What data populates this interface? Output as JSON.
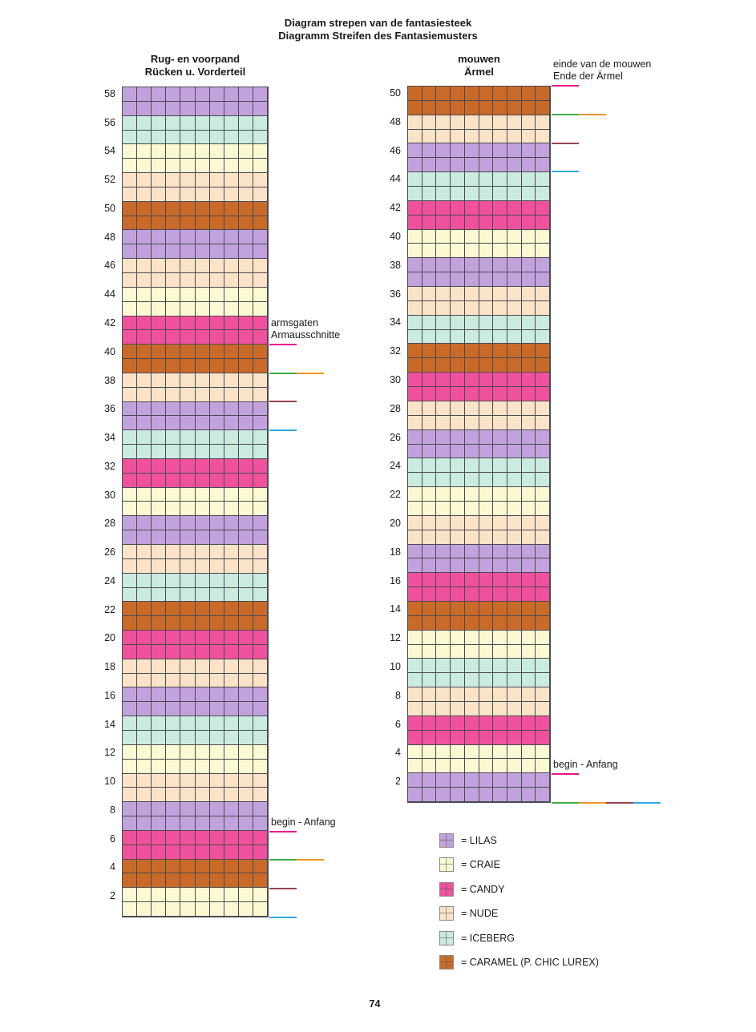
{
  "page": {
    "title_line1": "Diagram strepen van de fantasiesteek",
    "title_line2": "Diagramm Streifen des Fantasiemusters",
    "page_number": "74"
  },
  "colors": {
    "LILAS": "#c2a2dd",
    "CRAIE": "#fbf9d2",
    "CANDY": "#f1519c",
    "NUDE": "#fbe3c8",
    "ICEBERG": "#c9ecdf",
    "CARAMEL": "#ca6a28"
  },
  "marker_colors": {
    "magenta": "#ed118f",
    "green": "#3cab49",
    "orange": "#f7941e",
    "maroon": "#96424f",
    "blue": "#29abe2"
  },
  "grid_line_color": "#4a4a52",
  "chart_data": [
    {
      "type": "heatmap",
      "id": "back-front",
      "title_lines": [
        "Rug- en voorpand",
        "Rücken u. Vorderteil"
      ],
      "rows": 58,
      "cols": 10,
      "row_label_step": 2,
      "rows_per_stripe": 2,
      "stripes_bottom_to_top": [
        "CRAIE",
        "CARAMEL",
        "CANDY",
        "LILAS",
        "NUDE",
        "CRAIE",
        "ICEBERG",
        "LILAS",
        "NUDE",
        "CANDY",
        "CARAMEL",
        "ICEBERG",
        "NUDE",
        "LILAS",
        "CRAIE",
        "CANDY",
        "ICEBERG",
        "LILAS",
        "NUDE",
        "CARAMEL",
        "CANDY",
        "CRAIE",
        "NUDE",
        "LILAS",
        "CARAMEL",
        "NUDE",
        "CRAIE",
        "ICEBERG",
        "LILAS"
      ],
      "markers": [
        {
          "boundary_row": 40,
          "segments": [
            "magenta"
          ],
          "label_lines": [
            "armsgaten",
            "Armausschnitte"
          ]
        },
        {
          "boundary_row": 38,
          "segments": [
            "green",
            "orange"
          ]
        },
        {
          "boundary_row": 36,
          "segments": [
            "maroon"
          ]
        },
        {
          "boundary_row": 34,
          "segments": [
            "blue"
          ]
        },
        {
          "boundary_row": 6,
          "segments": [
            "magenta"
          ],
          "label_lines": [
            "begin - Anfang"
          ]
        },
        {
          "boundary_row": 4,
          "segments": [
            "green",
            "orange"
          ]
        },
        {
          "boundary_row": 2,
          "segments": [
            "maroon"
          ]
        },
        {
          "boundary_row": 0,
          "segments": [
            "blue"
          ]
        }
      ]
    },
    {
      "type": "heatmap",
      "id": "sleeves",
      "title_lines": [
        "mouwen",
        "Ärmel"
      ],
      "rows": 50,
      "cols": 10,
      "row_label_step": 2,
      "rows_per_stripe": 2,
      "stripes_bottom_to_top": [
        "LILAS",
        "CRAIE",
        "CANDY",
        "NUDE",
        "ICEBERG",
        "CRAIE",
        "CARAMEL",
        "CANDY",
        "LILAS",
        "NUDE",
        "CRAIE",
        "ICEBERG",
        "LILAS",
        "NUDE",
        "CANDY",
        "CARAMEL",
        "ICEBERG",
        "NUDE",
        "LILAS",
        "CRAIE",
        "CANDY",
        "ICEBERG",
        "LILAS",
        "NUDE",
        "CARAMEL"
      ],
      "markers": [
        {
          "boundary_row": 50,
          "segments": [
            "magenta"
          ],
          "label_lines": [
            "einde van de mouwen",
            "Ende der Ärmel"
          ]
        },
        {
          "boundary_row": 48,
          "segments": [
            "green",
            "orange"
          ]
        },
        {
          "boundary_row": 46,
          "segments": [
            "maroon"
          ]
        },
        {
          "boundary_row": 44,
          "segments": [
            "blue"
          ]
        },
        {
          "boundary_row": 2,
          "segments": [
            "magenta"
          ],
          "label_lines": [
            "begin - Anfang"
          ]
        },
        {
          "boundary_row": 0,
          "segments": [
            "green",
            "orange",
            "maroon",
            "blue"
          ]
        }
      ]
    }
  ],
  "legend": {
    "items": [
      {
        "color": "LILAS",
        "label": "= LILAS"
      },
      {
        "color": "CRAIE",
        "label": "= CRAIE"
      },
      {
        "color": "CANDY",
        "label": "= CANDY"
      },
      {
        "color": "NUDE",
        "label": "= NUDE"
      },
      {
        "color": "ICEBERG",
        "label": "= ICEBERG"
      },
      {
        "color": "CARAMEL",
        "label": "= CARAMEL (P. CHIC LUREX)"
      }
    ]
  }
}
